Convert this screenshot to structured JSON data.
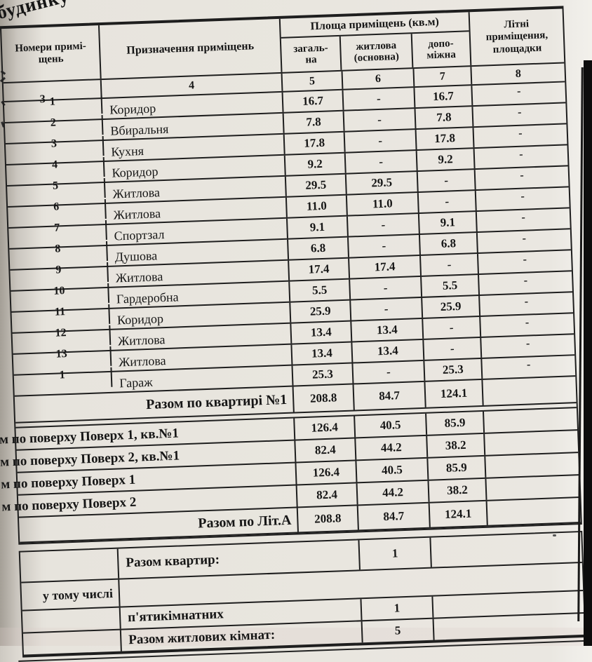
{
  "document": {
    "top_fragment": "будинку №",
    "table": {
      "header": {
        "room_numbers": "Номери примі-\nщень",
        "purpose": "Призначення приміщень",
        "area_group": "Площа приміщень (кв.м)",
        "total": "загаль-\nна",
        "living": "житлова\n(основна)",
        "auxiliary": "допо-\nміжна",
        "summer": "Літні\nприміщення,\nплощадки",
        "col_numbers": {
          "rooms": "3",
          "purpose": "4",
          "total": "5",
          "living": "6",
          "aux": "7",
          "summer": "8"
        }
      },
      "rooms": [
        {
          "num": "1",
          "name": "Коридор",
          "total": "16.7",
          "living": "-",
          "aux": "16.7",
          "summer": "-"
        },
        {
          "num": "2",
          "name": "Вбиральня",
          "total": "7.8",
          "living": "-",
          "aux": "7.8",
          "summer": "-"
        },
        {
          "num": "3",
          "name": "Кухня",
          "total": "17.8",
          "living": "-",
          "aux": "17.8",
          "summer": "-"
        },
        {
          "num": "4",
          "name": "Коридор",
          "total": "9.2",
          "living": "-",
          "aux": "9.2",
          "summer": "-"
        },
        {
          "num": "5",
          "name": "Житлова",
          "total": "29.5",
          "living": "29.5",
          "aux": "-",
          "summer": "-"
        },
        {
          "num": "6",
          "name": "Житлова",
          "total": "11.0",
          "living": "11.0",
          "aux": "-",
          "summer": "-"
        },
        {
          "num": "7",
          "name": "Спортзал",
          "total": "9.1",
          "living": "-",
          "aux": "9.1",
          "summer": "-"
        },
        {
          "num": "8",
          "name": "Душова",
          "total": "6.8",
          "living": "-",
          "aux": "6.8",
          "summer": "-"
        },
        {
          "num": "9",
          "name": "Житлова",
          "total": "17.4",
          "living": "17.4",
          "aux": "-",
          "summer": "-"
        },
        {
          "num": "10",
          "name": "Гардеробна",
          "total": "5.5",
          "living": "-",
          "aux": "5.5",
          "summer": "-"
        },
        {
          "num": "11",
          "name": "Коридор",
          "total": "25.9",
          "living": "-",
          "aux": "25.9",
          "summer": "-"
        },
        {
          "num": "12",
          "name": "Житлова",
          "total": "13.4",
          "living": "13.4",
          "aux": "-",
          "summer": "-"
        },
        {
          "num": "13",
          "name": "Житлова",
          "total": "13.4",
          "living": "13.4",
          "aux": "-",
          "summer": "-"
        },
        {
          "num": "1",
          "name": "Гараж",
          "total": "25.3",
          "living": "-",
          "aux": "25.3",
          "summer": "-"
        }
      ],
      "summary_rows": [
        {
          "label": "Разом по квартирі №1",
          "total": "208.8",
          "living": "84.7",
          "aux": "124.1",
          "summer": ""
        },
        {
          "label": "м по поверху Поверх 1, кв.№1",
          "total": "126.4",
          "living": "40.5",
          "aux": "85.9",
          "summer": ""
        },
        {
          "label": "м по поверху Поверх 2, кв.№1",
          "total": "82.4",
          "living": "44.2",
          "aux": "38.2",
          "summer": ""
        },
        {
          "label": "м по поверху Поверх 1",
          "total": "126.4",
          "living": "40.5",
          "aux": "85.9",
          "summer": ""
        },
        {
          "label": "м по поверху Поверх 2",
          "total": "82.4",
          "living": "44.2",
          "aux": "38.2",
          "summer": ""
        },
        {
          "label": "Разом по Літ.А",
          "total": "208.8",
          "living": "84.7",
          "aux": "124.1",
          "summer": ""
        }
      ],
      "totals": {
        "apartments_label": "Разом квартир:",
        "apartments_value": "1",
        "including_label": "у тому числі",
        "five_room_label": "п'ятикімнатних",
        "five_room_value": "1",
        "living_rooms_label": "Разом житлових кімнат:",
        "living_rooms_value": "5"
      }
    }
  }
}
